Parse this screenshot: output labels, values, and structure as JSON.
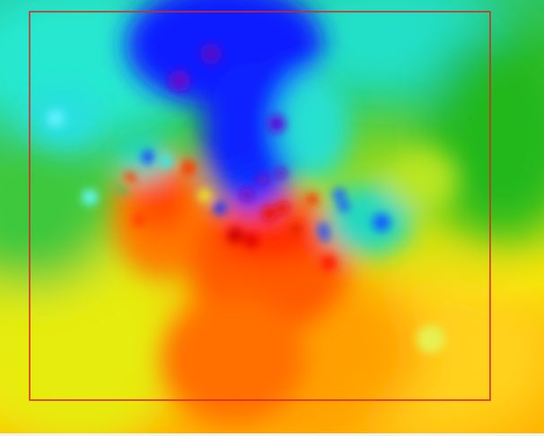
{
  "map": {
    "type": "interpolated-heatmap",
    "color_scale": [
      "#0000ff",
      "#00ffff",
      "#00c800",
      "#c8f000",
      "#ffff00",
      "#ffa000",
      "#ff4000",
      "#e00000"
    ],
    "colors": {
      "low": "#0000ff",
      "mid": "#22cc22",
      "high": "#e00000",
      "bounding_box": "#dd2222"
    },
    "has_bounding_box": true,
    "legend": "none",
    "grid": false
  }
}
